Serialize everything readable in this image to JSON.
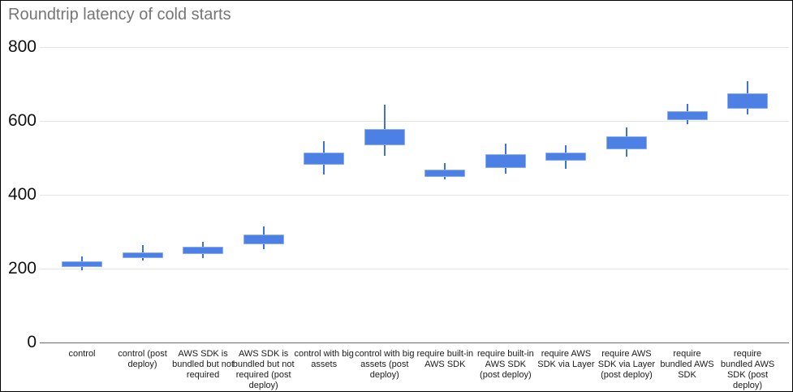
{
  "chart_data": {
    "type": "candlestick",
    "title": "Roundtrip latency of cold starts",
    "xlabel": "",
    "ylabel": "",
    "ylim": [
      0,
      800
    ],
    "yticks": [
      0,
      200,
      400,
      600,
      800
    ],
    "grid": true,
    "legend": "none",
    "candle_color": "#4d80e4",
    "whisker_color": "#3e72db",
    "categories": [
      "control",
      "control (post deploy)",
      "AWS SDK is bundled but not required",
      "AWS SDK is bundled but not required (post deploy)",
      "control with big assets",
      "control with big assets (post deploy)",
      "require built-in AWS SDK",
      "require built-in AWS SDK (post deploy)",
      "require AWS SDK via Layer",
      "require AWS SDK via Layer (post deploy)",
      "require bundled AWS SDK",
      "require bundled AWS SDK (post deploy)"
    ],
    "series": [
      {
        "name": "roundtrip latency",
        "points": [
          {
            "low": 195,
            "open": 205,
            "close": 220,
            "high": 234
          },
          {
            "low": 222,
            "open": 228,
            "close": 244,
            "high": 264
          },
          {
            "low": 229,
            "open": 240,
            "close": 259,
            "high": 273
          },
          {
            "low": 253,
            "open": 266,
            "close": 292,
            "high": 315
          },
          {
            "low": 456,
            "open": 481,
            "close": 515,
            "high": 546
          },
          {
            "low": 506,
            "open": 533,
            "close": 577,
            "high": 643
          },
          {
            "low": 442,
            "open": 449,
            "close": 469,
            "high": 486
          },
          {
            "low": 457,
            "open": 473,
            "close": 509,
            "high": 538
          },
          {
            "low": 470,
            "open": 493,
            "close": 515,
            "high": 533
          },
          {
            "low": 503,
            "open": 522,
            "close": 558,
            "high": 583
          },
          {
            "low": 591,
            "open": 603,
            "close": 627,
            "high": 647
          },
          {
            "low": 618,
            "open": 634,
            "close": 674,
            "high": 708
          }
        ]
      }
    ]
  }
}
